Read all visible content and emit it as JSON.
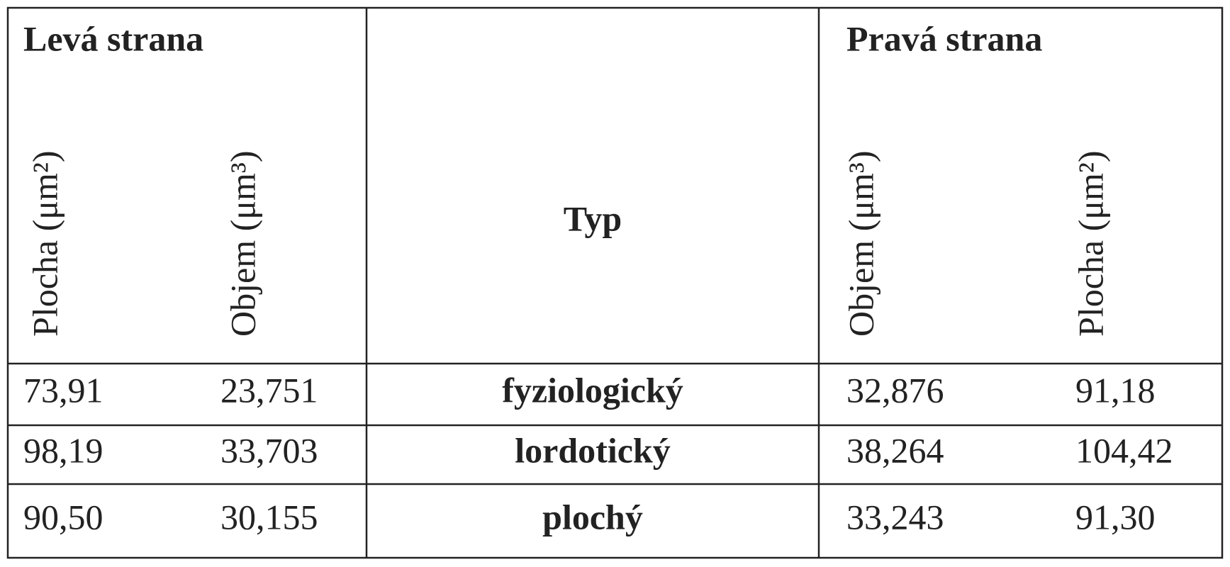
{
  "header": {
    "left_title": "Levá strana",
    "type": "Typ",
    "right_title": "Pravá strana",
    "left_columns": [
      "Plocha (μm²)",
      "Objem (μm³)"
    ],
    "right_columns": [
      "Objem (μm³)",
      "Plocha (μm²)"
    ]
  },
  "table": {
    "rows": [
      [
        "73,91",
        "23,751",
        "fyziologický",
        "32,876",
        "91,18"
      ],
      [
        "98,19",
        "33,703",
        "lordotický",
        "38,264",
        "104,42"
      ],
      [
        "90,50",
        "30,155",
        "plochý",
        "33,243",
        "91,30"
      ]
    ]
  }
}
